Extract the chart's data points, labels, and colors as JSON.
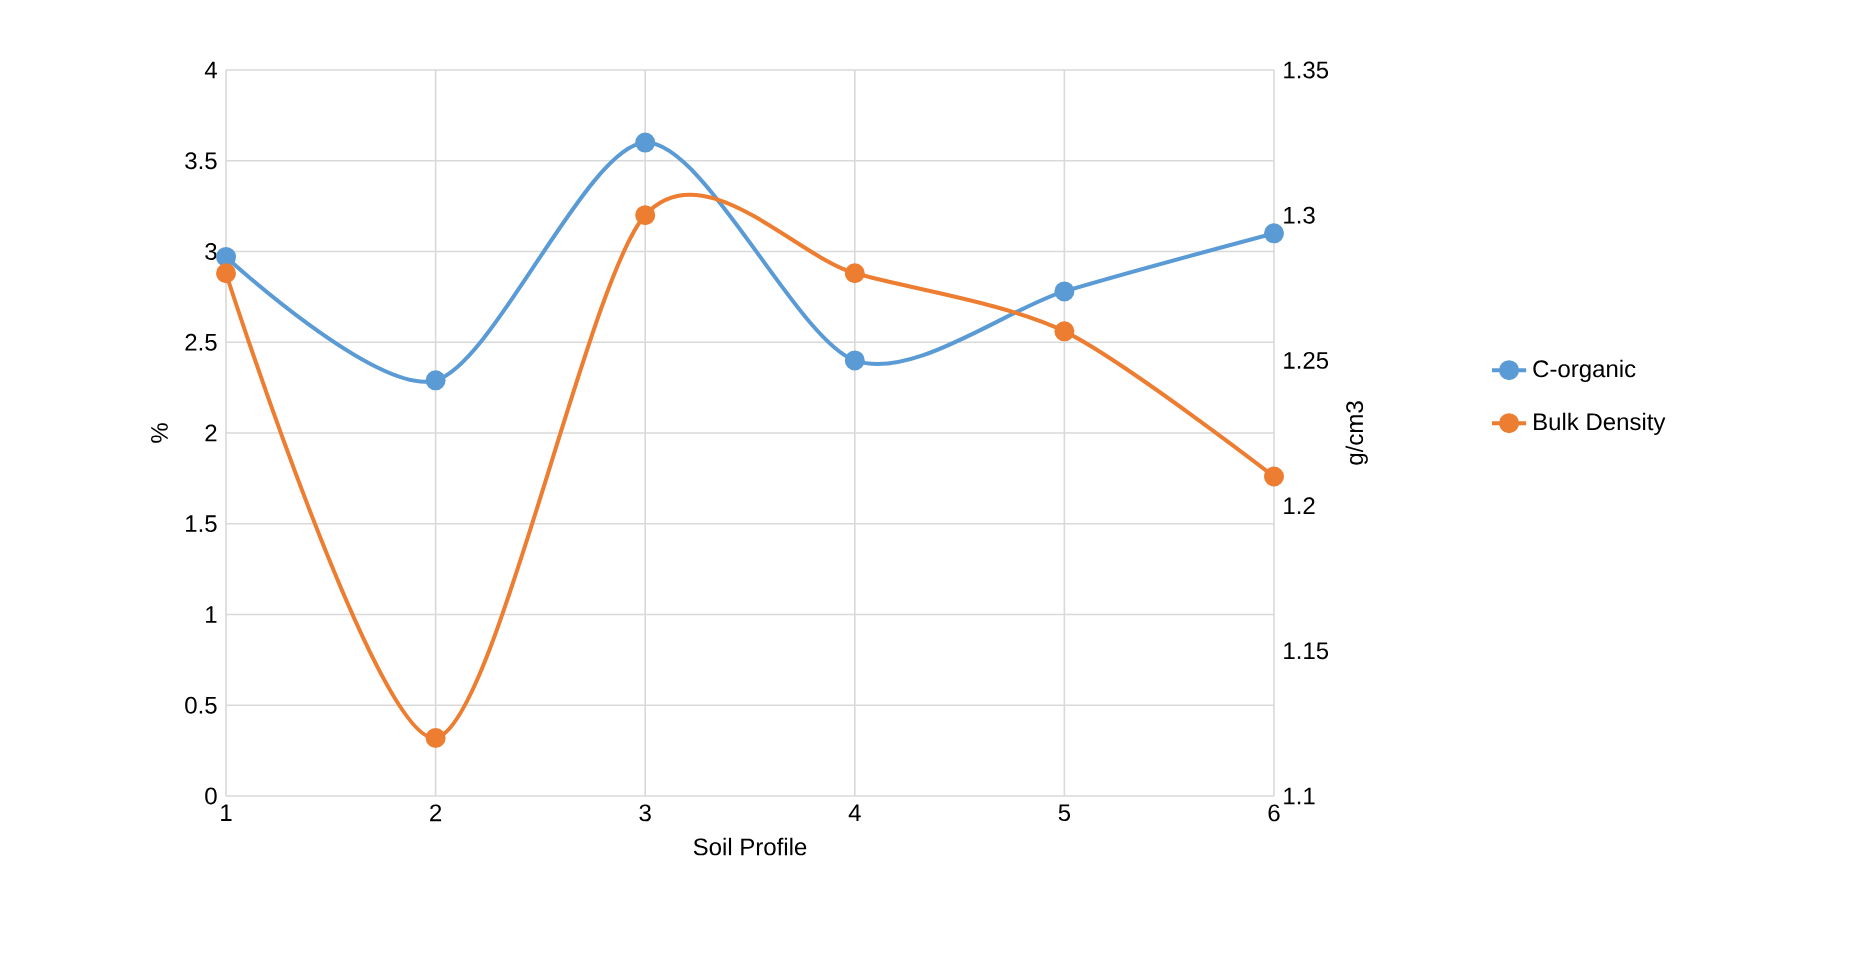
{
  "chart_data": {
    "type": "line",
    "xlabel": "Soil Profile",
    "ylabel": "%",
    "y2label": "g/cm3",
    "x": [
      1,
      2,
      3,
      4,
      5,
      6
    ],
    "series": [
      {
        "name": "C-organic",
        "color": "#5b9bd5",
        "values": [
          2.97,
          2.29,
          3.6,
          2.4,
          2.78,
          3.1
        ]
      },
      {
        "name": "Bulk Density",
        "color": "#ed7d31",
        "axis": "y2",
        "values": [
          1.28,
          1.12,
          1.3,
          1.28,
          1.26,
          1.21
        ]
      }
    ],
    "xlim": [
      1,
      6
    ],
    "xticks": [
      1,
      2,
      3,
      4,
      5,
      6
    ],
    "ylim": [
      0,
      4
    ],
    "yticks": [
      0,
      0.5,
      1,
      1.5,
      2,
      2.5,
      3,
      3.5,
      4
    ],
    "y2lim": [
      1.1,
      1.35
    ],
    "y2ticks": [
      1.1,
      1.15,
      1.2,
      1.25,
      1.3,
      1.35
    ],
    "grid": true,
    "legend": "right",
    "marker": "circle",
    "line_style": "solid"
  }
}
